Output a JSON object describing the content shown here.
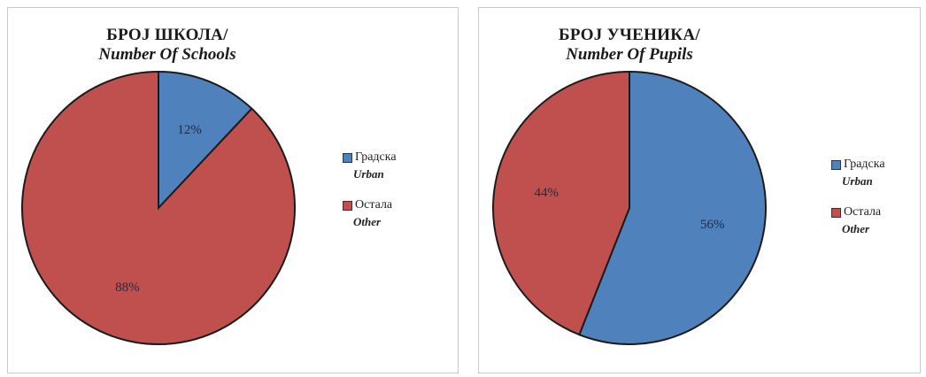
{
  "chart_data": [
    {
      "type": "pie",
      "title": "БРОЈ ШКОЛА/",
      "subtitle": "Number Of Schools",
      "categories": [
        "Градска",
        "Остала"
      ],
      "categories_en": [
        "Urban",
        "Other"
      ],
      "values": [
        12,
        88
      ],
      "labels": [
        "12%",
        "88%"
      ],
      "colors": [
        "#4f81bd",
        "#c0504d"
      ],
      "legend_position": "right"
    },
    {
      "type": "pie",
      "title": "БРОЈ УЧЕНИКА/",
      "subtitle": "Number Of Pupils",
      "categories": [
        "Градска",
        "Остала"
      ],
      "categories_en": [
        "Urban",
        "Other"
      ],
      "values": [
        56,
        44
      ],
      "labels": [
        "56%",
        "44%"
      ],
      "colors": [
        "#4f81bd",
        "#c0504d"
      ],
      "legend_position": "right"
    }
  ]
}
